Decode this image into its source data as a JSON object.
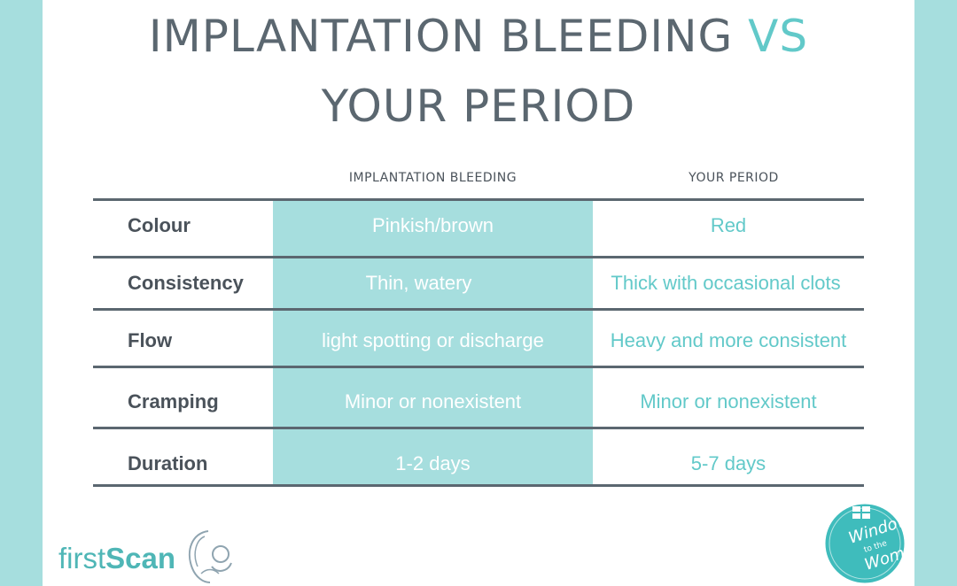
{
  "title": {
    "line1_prefix": "IMPLANTATION BLEEDING",
    "line1_vs": "VS",
    "line2": "YOUR PERIOD"
  },
  "columns": {
    "implantation": "IMPLANTATION BLEEDING",
    "period": "YOUR PERIOD"
  },
  "rows": [
    {
      "label": "Colour",
      "implantation": "Pinkish/brown",
      "period": "Red"
    },
    {
      "label": "Consistency",
      "implantation": "Thin, watery",
      "period": "Thick with occasional clots"
    },
    {
      "label": "Flow",
      "implantation": "light spotting or discharge",
      "period": "Heavy and more consistent"
    },
    {
      "label": "Cramping",
      "implantation": "Minor or nonexistent",
      "period": "Minor or nonexistent"
    },
    {
      "label": "Duration",
      "implantation": "1-2 days",
      "period": "5-7 days"
    }
  ],
  "logos": {
    "first_scan_a": "first",
    "first_scan_b": "Scan",
    "window_to_the_womb": "Window to the Womb"
  },
  "colors": {
    "teal": "#a6dede",
    "accent": "#62c9c9",
    "text": "#5b6770"
  }
}
